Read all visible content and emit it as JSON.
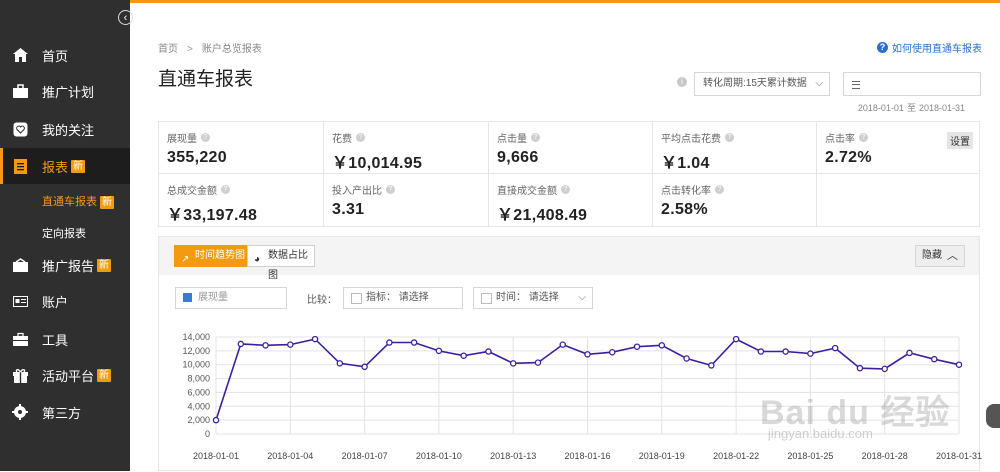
{
  "sidebar": {
    "collapse_icon": "chevron-left-icon",
    "items": [
      {
        "label": "首页",
        "icon": "home-icon",
        "badge": ""
      },
      {
        "label": "推广计划",
        "icon": "briefcase-icon",
        "badge": ""
      },
      {
        "label": "我的关注",
        "icon": "heart-icon",
        "badge": ""
      },
      {
        "label": "报表",
        "icon": "report-icon",
        "badge": "新"
      },
      {
        "label": "推广报告",
        "icon": "report-box-icon",
        "badge": "新"
      },
      {
        "label": "账户",
        "icon": "id-card-icon",
        "badge": ""
      },
      {
        "label": "工具",
        "icon": "toolbox-icon",
        "badge": ""
      },
      {
        "label": "活动平台",
        "icon": "gift-icon",
        "badge": "新"
      },
      {
        "label": "第三方",
        "icon": "gear-icon",
        "badge": ""
      }
    ],
    "subitems": [
      {
        "label": "直通车报表",
        "badge": "新"
      },
      {
        "label": "定向报表",
        "badge": ""
      }
    ]
  },
  "breadcrumb": {
    "home": "首页",
    "sep": ">",
    "current": "账户总览报表"
  },
  "help_link": "如何使用直通车报表",
  "page_title": "直通车报表",
  "period_select": {
    "value": "转化周期:15天累计数据"
  },
  "date_range": {
    "start": "2018-01-01",
    "to": "至",
    "end": "2018-01-31"
  },
  "kpis": [
    {
      "label": "展现量",
      "value": "355,220"
    },
    {
      "label": "花费",
      "value": "￥10,014.95"
    },
    {
      "label": "点击量",
      "value": "9,666"
    },
    {
      "label": "平均点击花费",
      "value": "￥1.04"
    },
    {
      "label": "点击率",
      "value": "2.72%"
    },
    {
      "label": "总成交金额",
      "value": "￥33,197.48"
    },
    {
      "label": "投入产出比",
      "value": "3.31"
    },
    {
      "label": "直接成交金额",
      "value": "￥21,408.49"
    },
    {
      "label": "点击转化率",
      "value": "2.58%"
    }
  ],
  "settings_button": "设置",
  "chart_tabs": [
    {
      "label": "时间趋势图"
    },
    {
      "label": "数据占比图"
    }
  ],
  "hide_button": "隐藏",
  "metric_selector": {
    "value": "展现量",
    "color": "#3b7bd6"
  },
  "compare": {
    "label": "比较：",
    "metric_placeholder": "指标： 请选择",
    "time_placeholder": "时间： 请选择"
  },
  "watermark": {
    "text": "Bai du 经验",
    "sub": "jingyan.baidu.com"
  },
  "chart_data": {
    "type": "line",
    "series": [
      {
        "name": "展现量",
        "color": "#3d1f9e",
        "values": [
          2000,
          13000,
          12800,
          12900,
          13700,
          10200,
          9700,
          13200,
          13200,
          12000,
          11300,
          11900,
          10200,
          10300,
          12900,
          11500,
          11800,
          12600,
          12800,
          10900,
          9900,
          13700,
          11900,
          11900,
          11600,
          12400,
          9500,
          9400,
          11700,
          10800,
          10000
        ]
      }
    ],
    "x": [
      "2018-01-01",
      "2018-01-02",
      "2018-01-03",
      "2018-01-04",
      "2018-01-05",
      "2018-01-06",
      "2018-01-07",
      "2018-01-08",
      "2018-01-09",
      "2018-01-10",
      "2018-01-11",
      "2018-01-12",
      "2018-01-13",
      "2018-01-14",
      "2018-01-15",
      "2018-01-16",
      "2018-01-17",
      "2018-01-18",
      "2018-01-19",
      "2018-01-20",
      "2018-01-21",
      "2018-01-22",
      "2018-01-23",
      "2018-01-24",
      "2018-01-25",
      "2018-01-26",
      "2018-01-27",
      "2018-01-28",
      "2018-01-29",
      "2018-01-30",
      "2018-01-31"
    ],
    "xtick_labels": [
      "2018-01-01",
      "2018-01-04",
      "2018-01-07",
      "2018-01-10",
      "2018-01-13",
      "2018-01-16",
      "2018-01-19",
      "2018-01-22",
      "2018-01-25",
      "2018-01-28",
      "2018-01-31"
    ],
    "yticks": [
      "0",
      "2,000",
      "4,000",
      "6,000",
      "8,000",
      "10,000",
      "12,000",
      "14,000"
    ],
    "ylim": [
      0,
      14000
    ],
    "grid": true
  }
}
